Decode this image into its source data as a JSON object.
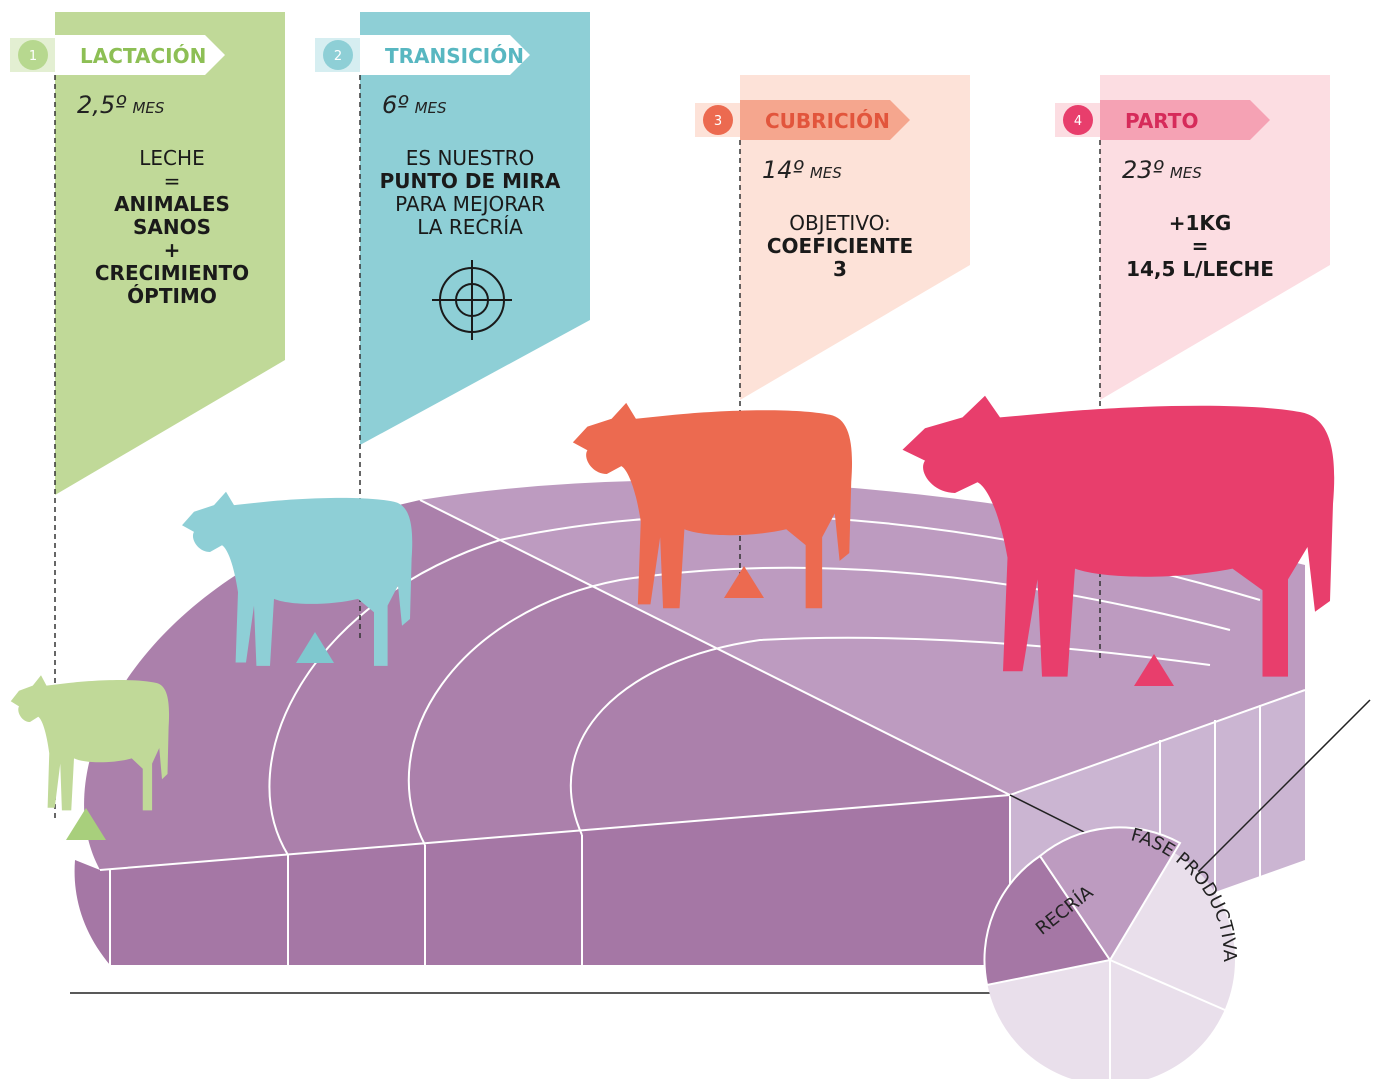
{
  "stages": [
    {
      "number": "1",
      "title": "LACTACIÓN",
      "month": "2,5º",
      "unit": "MES",
      "body": [
        {
          "text": "LECHE",
          "bold": false
        },
        {
          "text": "=",
          "bold": false
        },
        {
          "text": "ANIMALES",
          "bold": true
        },
        {
          "text": "SANOS",
          "bold": true
        },
        {
          "text": "+",
          "bold": true
        },
        {
          "text": "CRECIMIENTO",
          "bold": true
        },
        {
          "text": "ÓPTIMO",
          "bold": true
        }
      ]
    },
    {
      "number": "2",
      "title": "TRANSICIÓN",
      "month": "6º",
      "unit": "MES",
      "body": [
        {
          "text": "ES NUESTRO",
          "bold": false
        },
        {
          "text": "PUNTO DE MIRA",
          "bold": true
        },
        {
          "text": "PARA MEJORAR",
          "bold": false
        },
        {
          "text": "LA RECRÍA",
          "bold": false
        }
      ]
    },
    {
      "number": "3",
      "title": "CUBRICIÓN",
      "month": "14º",
      "unit": "MES",
      "body": [
        {
          "text": "OBJETIVO:",
          "bold": false
        },
        {
          "text": "COEFICIENTE",
          "bold": true
        },
        {
          "text": "3",
          "bold": true
        }
      ]
    },
    {
      "number": "4",
      "title": "PARTO",
      "month": "23º",
      "unit": "MES",
      "body": [
        {
          "text": "+1KG",
          "bold": true
        },
        {
          "text": "=",
          "bold": true
        },
        {
          "text": "14,5 L/LECHE",
          "bold": true
        }
      ]
    }
  ],
  "pie": {
    "inner_label": "RECRÍA",
    "outer_label": "FASE PRODUCTIVA"
  }
}
